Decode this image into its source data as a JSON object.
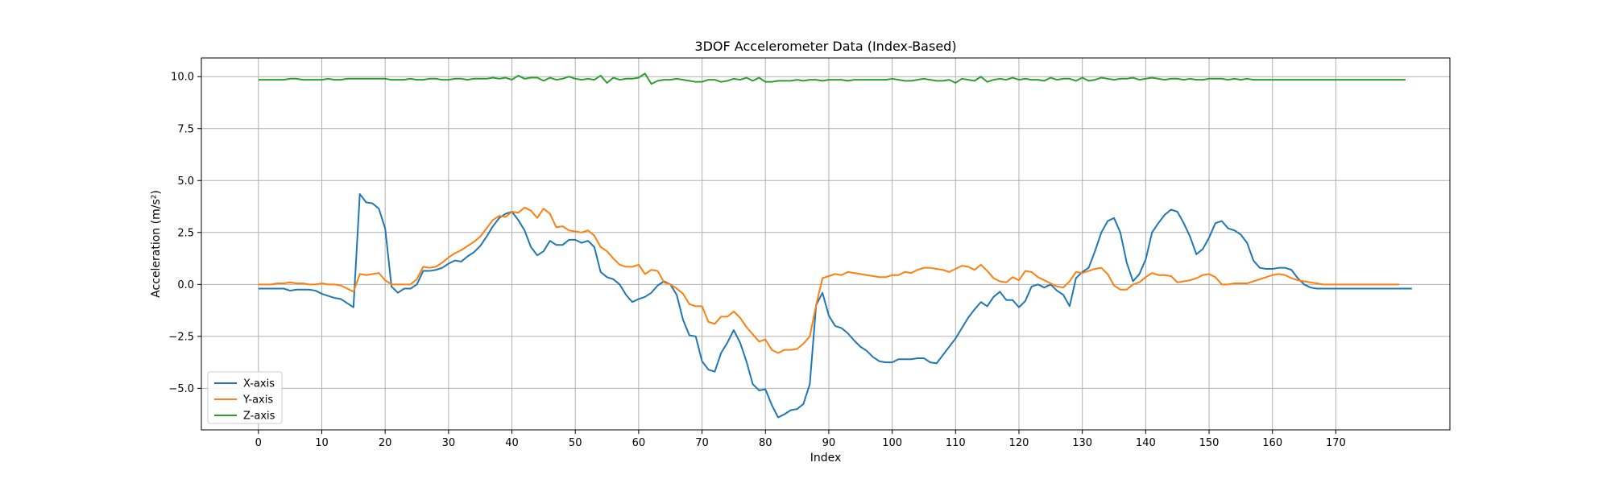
{
  "chart_data": {
    "type": "line",
    "title": "3DOF Accelerometer Data (Index-Based)",
    "xlabel": "Index",
    "ylabel": "Acceleration (m/s²)",
    "xlim": [
      -9,
      188
    ],
    "ylim": [
      -7.0,
      10.9
    ],
    "xticks": [
      0,
      10,
      20,
      30,
      40,
      50,
      60,
      70,
      80,
      90,
      100,
      110,
      120,
      130,
      140,
      150,
      160,
      170
    ],
    "yticks": [
      -5.0,
      -2.5,
      0.0,
      2.5,
      5.0,
      7.5,
      10.0
    ],
    "ytick_labels": [
      "−5.0",
      "−2.5",
      "0.0",
      "2.5",
      "5.0",
      "7.5",
      "10.0"
    ],
    "grid": true,
    "legend_position": "lower-left",
    "series": [
      {
        "name": "X-axis",
        "color": "#1f77b4",
        "values": [
          -0.2,
          -0.2,
          -0.2,
          -0.2,
          -0.2,
          -0.3,
          -0.25,
          -0.25,
          -0.25,
          -0.3,
          -0.45,
          -0.55,
          -0.65,
          -0.7,
          -0.9,
          -1.1,
          4.35,
          3.95,
          3.9,
          3.65,
          2.7,
          -0.1,
          -0.4,
          -0.2,
          -0.2,
          0.0,
          0.65,
          0.65,
          0.7,
          0.8,
          1.0,
          1.15,
          1.1,
          1.35,
          1.55,
          1.85,
          2.3,
          2.8,
          3.2,
          3.4,
          3.5,
          3.1,
          2.6,
          1.8,
          1.4,
          1.6,
          2.1,
          1.9,
          1.9,
          2.15,
          2.15,
          2.0,
          2.1,
          1.8,
          0.6,
          0.35,
          0.25,
          0.0,
          -0.5,
          -0.85,
          -0.7,
          -0.6,
          -0.4,
          -0.05,
          0.15,
          0.0,
          -0.5,
          -1.7,
          -2.45,
          -2.5,
          -3.7,
          -4.1,
          -4.2,
          -3.3,
          -2.8,
          -2.2,
          -2.8,
          -3.7,
          -4.8,
          -5.1,
          -5.05,
          -5.8,
          -6.4,
          -6.25,
          -6.05,
          -6.0,
          -5.75,
          -4.8,
          -1.0,
          -0.4,
          -1.5,
          -2.0,
          -2.1,
          -2.35,
          -2.7,
          -3.0,
          -3.2,
          -3.5,
          -3.7,
          -3.75,
          -3.75,
          -3.6,
          -3.6,
          -3.6,
          -3.55,
          -3.55,
          -3.75,
          -3.8,
          -3.4,
          -3.0,
          -2.6,
          -2.1,
          -1.6,
          -1.2,
          -0.85,
          -1.05,
          -0.6,
          -0.35,
          -0.75,
          -0.75,
          -1.1,
          -0.8,
          -0.1,
          0.0,
          -0.15,
          0.0,
          -0.3,
          -0.5,
          -1.05,
          0.3,
          0.6,
          0.8,
          1.6,
          2.5,
          3.05,
          3.2,
          2.5,
          1.05,
          0.15,
          0.5,
          1.2,
          2.5,
          2.95,
          3.35,
          3.6,
          3.5,
          2.95,
          2.3,
          1.45,
          1.7,
          2.25,
          2.95,
          3.05,
          2.7,
          2.6,
          2.4,
          2.0,
          1.15,
          0.8,
          0.75,
          0.75,
          0.8,
          0.8,
          0.7,
          0.3,
          0.0,
          -0.15,
          -0.2,
          -0.2,
          -0.2,
          -0.2,
          -0.2,
          -0.2,
          -0.2,
          -0.2,
          -0.2,
          -0.2,
          -0.2,
          -0.2,
          -0.2,
          -0.2,
          -0.2,
          -0.2
        ]
      },
      {
        "name": "Y-axis",
        "color": "#ff7f0e",
        "values": [
          0.0,
          0.0,
          0.0,
          0.05,
          0.05,
          0.1,
          0.05,
          0.05,
          0.0,
          0.0,
          0.05,
          0.0,
          0.0,
          -0.05,
          -0.2,
          -0.35,
          0.5,
          0.45,
          0.5,
          0.55,
          0.2,
          0.0,
          0.0,
          0.0,
          0.0,
          0.25,
          0.85,
          0.8,
          0.85,
          1.05,
          1.3,
          1.5,
          1.65,
          1.85,
          2.05,
          2.3,
          2.7,
          3.1,
          3.3,
          3.25,
          3.5,
          3.45,
          3.7,
          3.55,
          3.2,
          3.65,
          3.4,
          2.75,
          2.8,
          2.6,
          2.55,
          2.5,
          2.6,
          2.35,
          1.8,
          1.6,
          1.25,
          0.95,
          0.85,
          0.85,
          0.95,
          0.5,
          0.7,
          0.65,
          0.1,
          0.0,
          -0.2,
          -0.45,
          -0.95,
          -1.05,
          -1.05,
          -1.8,
          -1.9,
          -1.55,
          -1.55,
          -1.3,
          -1.6,
          -2.05,
          -2.4,
          -2.75,
          -2.65,
          -3.15,
          -3.3,
          -3.15,
          -3.15,
          -3.1,
          -2.85,
          -2.5,
          -1.0,
          0.3,
          0.4,
          0.5,
          0.45,
          0.6,
          0.55,
          0.5,
          0.45,
          0.4,
          0.35,
          0.35,
          0.45,
          0.45,
          0.6,
          0.55,
          0.7,
          0.8,
          0.8,
          0.75,
          0.7,
          0.6,
          0.75,
          0.9,
          0.85,
          0.7,
          0.95,
          0.65,
          0.3,
          0.15,
          0.1,
          0.35,
          0.2,
          0.65,
          0.6,
          0.35,
          0.2,
          0.05,
          -0.1,
          -0.15,
          0.15,
          0.6,
          0.55,
          0.65,
          0.75,
          0.8,
          0.5,
          -0.05,
          -0.25,
          -0.25,
          0.0,
          0.1,
          0.35,
          0.55,
          0.45,
          0.45,
          0.4,
          0.1,
          0.15,
          0.2,
          0.3,
          0.45,
          0.5,
          0.35,
          0.0,
          0.0,
          0.05,
          0.05,
          0.05,
          0.15,
          0.25,
          0.35,
          0.45,
          0.5,
          0.45,
          0.3,
          0.2,
          0.15,
          0.1,
          0.05,
          0.0,
          0.0,
          0.0,
          0.0,
          0.0,
          0.0,
          0.0,
          0.0,
          0.0,
          0.0,
          0.0,
          0.0,
          0.0
        ]
      },
      {
        "name": "Z-axis",
        "color": "#2ca02c",
        "values": [
          9.85,
          9.85,
          9.85,
          9.85,
          9.85,
          9.9,
          9.9,
          9.85,
          9.85,
          9.85,
          9.85,
          9.9,
          9.85,
          9.85,
          9.9,
          9.9,
          9.9,
          9.9,
          9.9,
          9.9,
          9.9,
          9.85,
          9.85,
          9.85,
          9.9,
          9.85,
          9.85,
          9.9,
          9.9,
          9.85,
          9.85,
          9.9,
          9.9,
          9.85,
          9.9,
          9.9,
          9.9,
          9.95,
          9.9,
          9.95,
          9.85,
          10.05,
          9.9,
          9.95,
          9.95,
          9.8,
          9.95,
          9.85,
          9.9,
          10.0,
          9.9,
          9.85,
          9.9,
          9.85,
          10.05,
          9.7,
          9.95,
          9.85,
          9.9,
          9.9,
          9.95,
          10.15,
          9.65,
          9.8,
          9.85,
          9.85,
          9.9,
          9.85,
          9.8,
          9.75,
          9.75,
          9.85,
          9.85,
          9.75,
          9.8,
          9.9,
          9.85,
          9.95,
          9.8,
          9.95,
          9.75,
          9.75,
          9.8,
          9.8,
          9.8,
          9.85,
          9.8,
          9.85,
          9.85,
          9.8,
          9.85,
          9.85,
          9.85,
          9.8,
          9.85,
          9.85,
          9.85,
          9.85,
          9.85,
          9.85,
          9.9,
          9.85,
          9.8,
          9.8,
          9.85,
          9.9,
          9.85,
          9.8,
          9.8,
          9.85,
          9.7,
          9.9,
          9.85,
          9.8,
          10.0,
          9.75,
          9.85,
          9.9,
          9.85,
          9.95,
          9.85,
          9.9,
          9.85,
          9.85,
          9.8,
          9.95,
          9.85,
          9.9,
          9.9,
          9.8,
          9.95,
          9.8,
          9.85,
          9.95,
          9.9,
          9.85,
          9.9,
          9.9,
          9.95,
          9.85,
          9.9,
          9.95,
          9.9,
          9.85,
          9.9,
          9.9,
          9.85,
          9.9,
          9.85,
          9.85,
          9.9,
          9.9,
          9.9,
          9.85,
          9.9,
          9.85,
          9.9,
          9.85,
          9.85,
          9.85,
          9.85,
          9.85,
          9.85,
          9.85,
          9.85,
          9.85,
          9.85,
          9.85,
          9.85,
          9.85,
          9.85,
          9.85,
          9.85,
          9.85,
          9.85,
          9.85,
          9.85,
          9.85,
          9.85,
          9.85,
          9.85,
          9.85
        ]
      }
    ]
  }
}
